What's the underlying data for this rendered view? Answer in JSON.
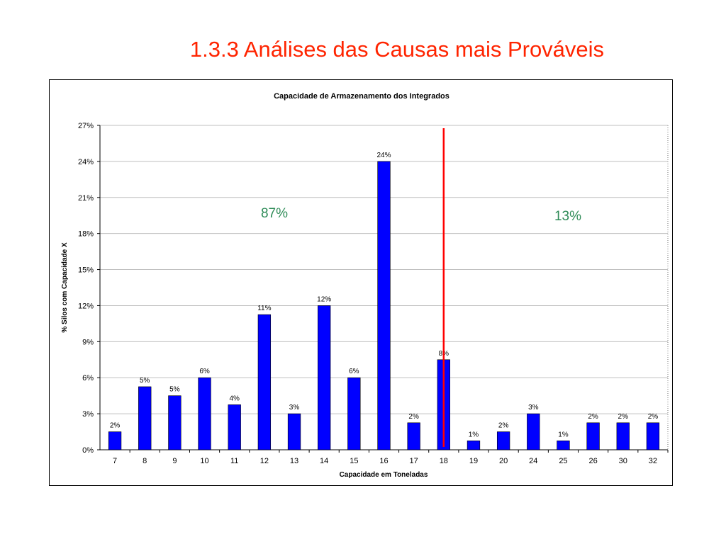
{
  "slide": {
    "title": "1.3.3 Análises das Causas mais Prováveis"
  },
  "colors": {
    "title": "#ff2400",
    "bars": "#0000ff",
    "divider": "#ff0000",
    "share_text": "#2e8b57"
  },
  "chart_data": {
    "type": "bar",
    "title": "Capacidade de Armazenamento dos Integrados",
    "xlabel": "Capacidade em Toneladas",
    "ylabel": "% Silos com Capacidade X",
    "categories": [
      "7",
      "8",
      "9",
      "10",
      "11",
      "12",
      "13",
      "14",
      "15",
      "16",
      "17",
      "18",
      "19",
      "20",
      "24",
      "25",
      "26",
      "30",
      "32"
    ],
    "values": [
      1.5,
      5.25,
      4.5,
      6.0,
      3.75,
      11.25,
      3.0,
      12.0,
      6.0,
      24.0,
      2.25,
      7.5,
      0.75,
      1.5,
      3.0,
      0.75,
      2.25,
      2.25,
      2.25
    ],
    "value_labels": [
      "2%",
      "5%",
      "5%",
      "6%",
      "4%",
      "11%",
      "3%",
      "12%",
      "6%",
      "24%",
      "2%",
      "8%",
      "1%",
      "2%",
      "3%",
      "1%",
      "2%",
      "2%",
      "2%"
    ],
    "yticks": [
      "0%",
      "3%",
      "6%",
      "9%",
      "12%",
      "15%",
      "18%",
      "21%",
      "24%",
      "27%"
    ],
    "ylim": [
      0,
      27
    ],
    "grid": true,
    "divider_after_category": "18",
    "annotations": [
      {
        "text": "87%",
        "side": "left"
      },
      {
        "text": "13%",
        "side": "right"
      }
    ]
  }
}
